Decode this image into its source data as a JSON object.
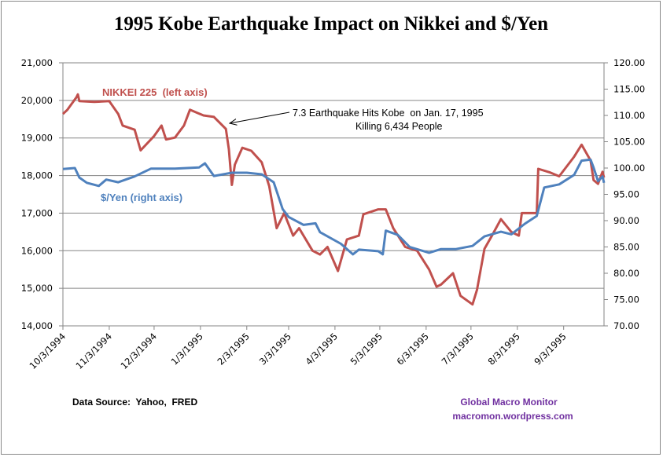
{
  "chart_data": {
    "type": "line",
    "title": "1995 Kobe Earthquake Impact on Nikkei and $/Yen",
    "y_left": {
      "range": [
        14000,
        21000
      ],
      "ticks": [
        "14,000",
        "15,000",
        "16,000",
        "17,000",
        "18,000",
        "19,000",
        "20,000",
        "21,000"
      ]
    },
    "y_right": {
      "range": [
        70,
        120
      ],
      "ticks": [
        "70.00",
        "75.00",
        "80.00",
        "85.00",
        "90.00",
        "95.00",
        "100.00",
        "105.00",
        "110.00",
        "115.00",
        "120.00"
      ]
    },
    "x_range": [
      "1994-10-03",
      "1995-09-30"
    ],
    "x_ticks": [
      "10/3/1994",
      "11/3/1994",
      "12/3/1994",
      "1/3/1995",
      "2/3/1995",
      "3/3/1995",
      "4/3/1995",
      "5/3/1995",
      "6/3/1995",
      "7/3/1995",
      "8/3/1995",
      "9/3/1995"
    ],
    "grid": true,
    "series": [
      {
        "name": "NIKKEI 225  (left axis)",
        "axis": "left",
        "color": "#C0504D",
        "points": [
          [
            "1994-10-03",
            19640
          ],
          [
            "1994-10-06",
            19750
          ],
          [
            "1994-10-12",
            20080
          ],
          [
            "1994-10-13",
            20160
          ],
          [
            "1994-10-14",
            19980
          ],
          [
            "1994-10-24",
            19960
          ],
          [
            "1994-11-03",
            19980
          ],
          [
            "1994-11-09",
            19640
          ],
          [
            "1994-11-12",
            19330
          ],
          [
            "1994-11-20",
            19220
          ],
          [
            "1994-11-24",
            18670
          ],
          [
            "1994-12-03",
            19050
          ],
          [
            "1994-12-08",
            19330
          ],
          [
            "1994-12-11",
            18960
          ],
          [
            "1994-12-17",
            19010
          ],
          [
            "1994-12-23",
            19330
          ],
          [
            "1994-12-27",
            19750
          ],
          [
            "1995-01-05",
            19600
          ],
          [
            "1995-01-12",
            19560
          ],
          [
            "1995-01-20",
            19240
          ],
          [
            "1995-01-22",
            18700
          ],
          [
            "1995-01-24",
            17750
          ],
          [
            "1995-01-26",
            18290
          ],
          [
            "1995-01-31",
            18740
          ],
          [
            "1995-02-06",
            18660
          ],
          [
            "1995-02-13",
            18350
          ],
          [
            "1995-02-18",
            17720
          ],
          [
            "1995-02-23",
            16600
          ],
          [
            "1995-02-28",
            17000
          ],
          [
            "1995-03-06",
            16400
          ],
          [
            "1995-03-10",
            16600
          ],
          [
            "1995-03-19",
            16000
          ],
          [
            "1995-03-24",
            15900
          ],
          [
            "1995-03-29",
            16100
          ],
          [
            "1995-04-05",
            15460
          ],
          [
            "1995-04-11",
            16300
          ],
          [
            "1995-04-19",
            16400
          ],
          [
            "1995-04-22",
            16970
          ],
          [
            "1995-05-02",
            17100
          ],
          [
            "1995-05-07",
            17100
          ],
          [
            "1995-05-12",
            16600
          ],
          [
            "1995-05-20",
            16100
          ],
          [
            "1995-05-28",
            16000
          ],
          [
            "1995-06-05",
            15500
          ],
          [
            "1995-06-10",
            15040
          ],
          [
            "1995-06-13",
            15100
          ],
          [
            "1995-06-21",
            15400
          ],
          [
            "1995-06-26",
            14800
          ],
          [
            "1995-07-04",
            14570
          ],
          [
            "1995-07-07",
            14960
          ],
          [
            "1995-07-12",
            16050
          ],
          [
            "1995-07-17",
            16400
          ],
          [
            "1995-07-23",
            16840
          ],
          [
            "1995-07-30",
            16500
          ],
          [
            "1995-08-04",
            16400
          ],
          [
            "1995-08-06",
            17000
          ],
          [
            "1995-08-16",
            17000
          ],
          [
            "1995-08-17",
            18180
          ],
          [
            "1995-08-25",
            18080
          ],
          [
            "1995-08-31",
            17980
          ],
          [
            "1995-09-10",
            18500
          ],
          [
            "1995-09-15",
            18820
          ],
          [
            "1995-09-21",
            18400
          ],
          [
            "1995-09-23",
            17880
          ],
          [
            "1995-09-26",
            17780
          ],
          [
            "1995-09-29",
            18100
          ],
          [
            "1995-09-30",
            17950
          ]
        ]
      },
      {
        "name": "$/Yen (right axis)",
        "axis": "right",
        "color": "#4F81BD",
        "points": [
          [
            "1994-10-03",
            99.8
          ],
          [
            "1994-10-11",
            100.0
          ],
          [
            "1994-10-14",
            98.2
          ],
          [
            "1994-10-19",
            97.2
          ],
          [
            "1994-10-27",
            96.6
          ],
          [
            "1994-11-01",
            97.8
          ],
          [
            "1994-11-09",
            97.3
          ],
          [
            "1994-11-20",
            98.4
          ],
          [
            "1994-12-01",
            99.9
          ],
          [
            "1994-12-17",
            99.9
          ],
          [
            "1995-01-02",
            100.1
          ],
          [
            "1995-01-06",
            100.9
          ],
          [
            "1995-01-12",
            98.5
          ],
          [
            "1995-01-24",
            99.1
          ],
          [
            "1995-02-03",
            99.1
          ],
          [
            "1995-02-13",
            98.8
          ],
          [
            "1995-02-21",
            97.3
          ],
          [
            "1995-02-27",
            92.2
          ],
          [
            "1995-03-03",
            90.7
          ],
          [
            "1995-03-13",
            89.2
          ],
          [
            "1995-03-21",
            89.5
          ],
          [
            "1995-03-24",
            87.8
          ],
          [
            "1995-04-07",
            85.6
          ],
          [
            "1995-04-15",
            83.6
          ],
          [
            "1995-04-19",
            84.5
          ],
          [
            "1995-05-02",
            84.2
          ],
          [
            "1995-05-05",
            83.6
          ],
          [
            "1995-05-07",
            88.1
          ],
          [
            "1995-05-15",
            87.3
          ],
          [
            "1995-05-23",
            85.0
          ],
          [
            "1995-06-05",
            83.9
          ],
          [
            "1995-06-13",
            84.6
          ],
          [
            "1995-06-23",
            84.6
          ],
          [
            "1995-07-04",
            85.2
          ],
          [
            "1995-07-12",
            87.0
          ],
          [
            "1995-07-23",
            87.9
          ],
          [
            "1995-07-30",
            87.4
          ],
          [
            "1995-08-08",
            89.4
          ],
          [
            "1995-08-16",
            90.9
          ],
          [
            "1995-08-21",
            96.3
          ],
          [
            "1995-08-31",
            96.9
          ],
          [
            "1995-09-10",
            98.7
          ],
          [
            "1995-09-15",
            101.4
          ],
          [
            "1995-09-21",
            101.6
          ],
          [
            "1995-09-23",
            100.1
          ],
          [
            "1995-09-26",
            97.5
          ],
          [
            "1995-09-29",
            98.4
          ],
          [
            "1995-09-30",
            97.2
          ]
        ]
      }
    ],
    "annotations": {
      "quake_line1": "7.3 Earthquake Hits Kobe  on Jan. 17, 1995",
      "quake_line2": "Killing 6,434 People",
      "source": "Data Source:  Yahoo,  FRED",
      "brand1": "Global Macro Monitor",
      "brand2": "macromon.wordpress.com"
    },
    "colors": {
      "brand": "#7030A0",
      "grid": "#868686"
    }
  }
}
